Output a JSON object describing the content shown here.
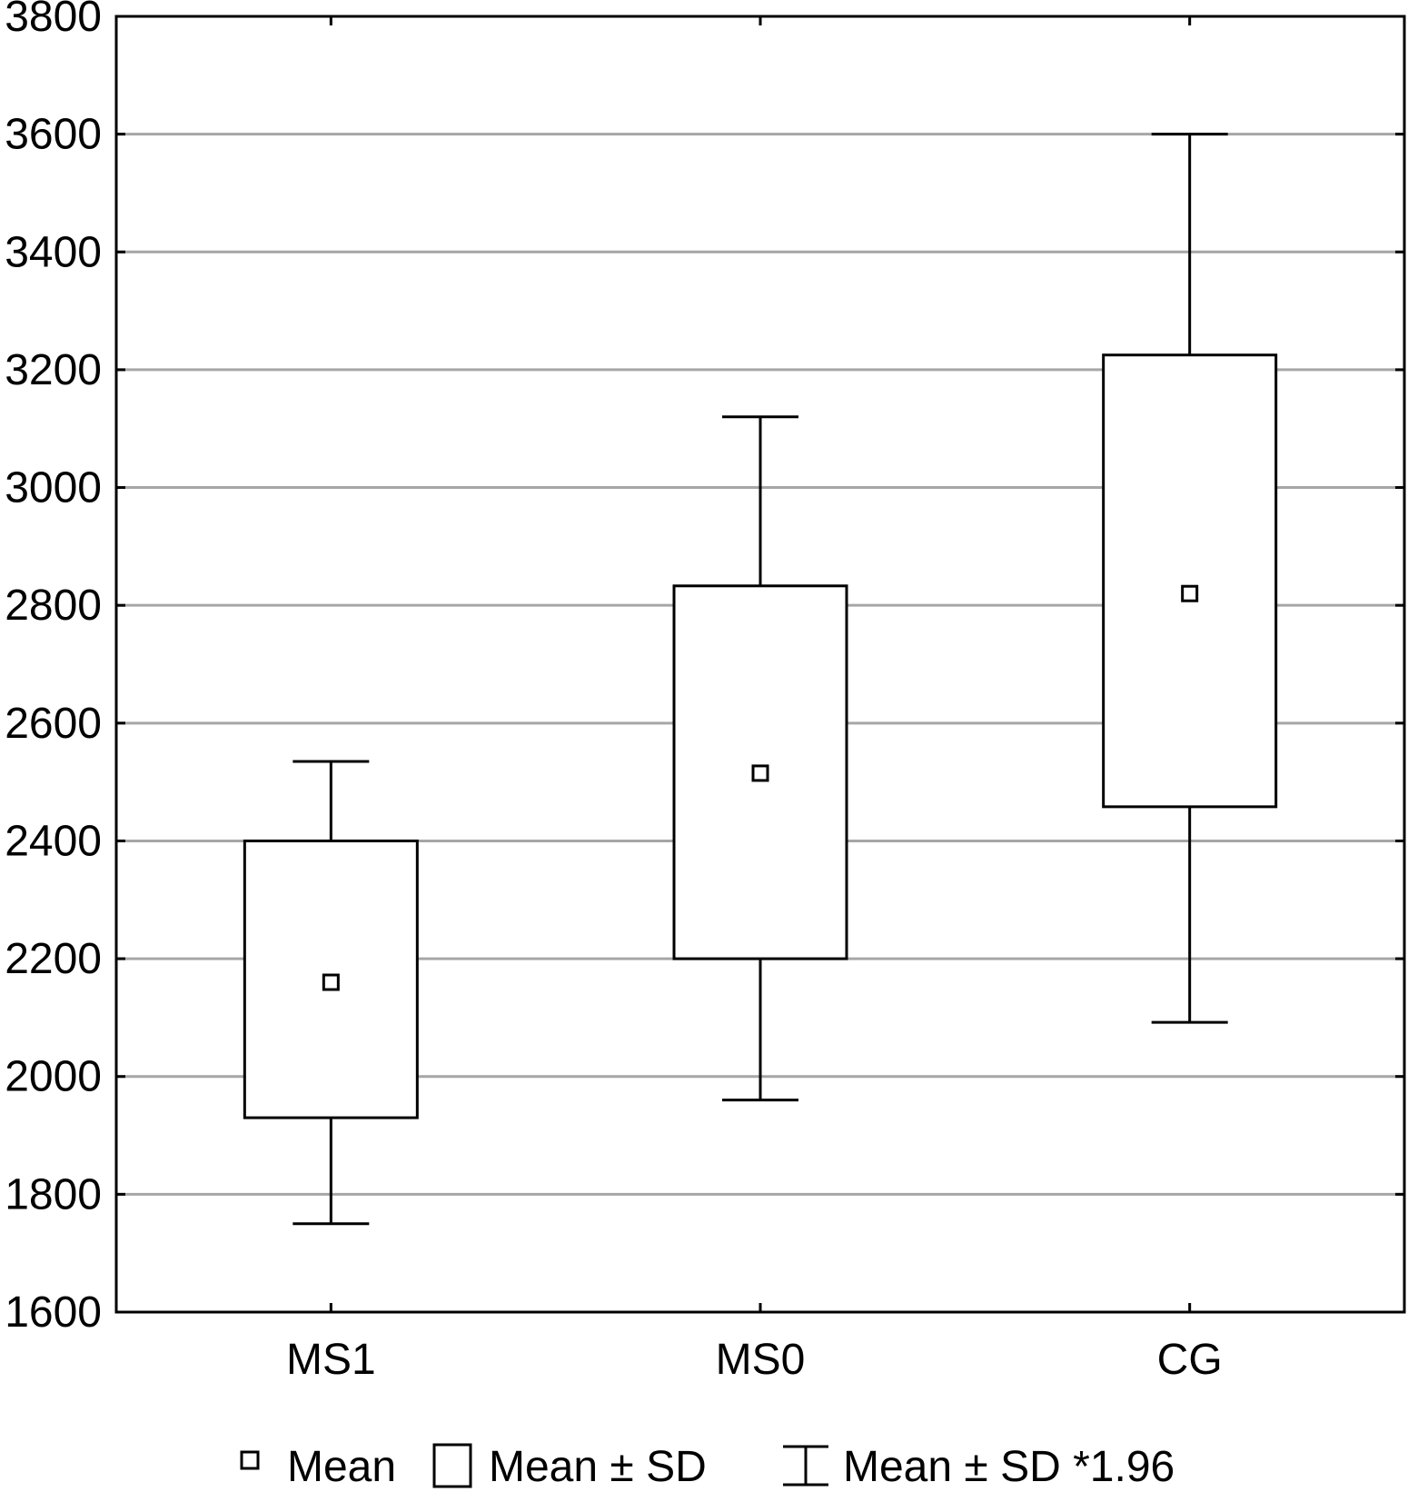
{
  "chart_data": {
    "type": "box",
    "categories": [
      "MS1",
      "MS0",
      "CG"
    ],
    "series": [
      {
        "category": "MS1",
        "mean": 2160,
        "sd_low": 1930,
        "sd_high": 2400,
        "whisker_low": 1750,
        "whisker_high": 2535
      },
      {
        "category": "MS0",
        "mean": 2515,
        "sd_low": 2200,
        "sd_high": 2833,
        "whisker_low": 1960,
        "whisker_high": 3120
      },
      {
        "category": "CG",
        "mean": 2820,
        "sd_low": 2458,
        "sd_high": 3225,
        "whisker_low": 2092,
        "whisker_high": 3600
      }
    ],
    "y_ticks": [
      1600,
      1800,
      2000,
      2200,
      2400,
      2600,
      2800,
      3000,
      3200,
      3400,
      3600,
      3800
    ],
    "ylim": [
      1600,
      3800
    ],
    "grid": true,
    "title": "",
    "xlabel": "",
    "ylabel": "",
    "legend": {
      "position": "bottom",
      "items": [
        {
          "symbol": "small-square",
          "label": "Mean"
        },
        {
          "symbol": "large-square",
          "label": "Mean ± SD"
        },
        {
          "symbol": "whisker",
          "label": "Mean ± SD *1.96"
        }
      ]
    },
    "colors": {
      "grid": "#a6a6a6",
      "box_stroke": "#000000",
      "box_fill": "#ffffff"
    }
  }
}
